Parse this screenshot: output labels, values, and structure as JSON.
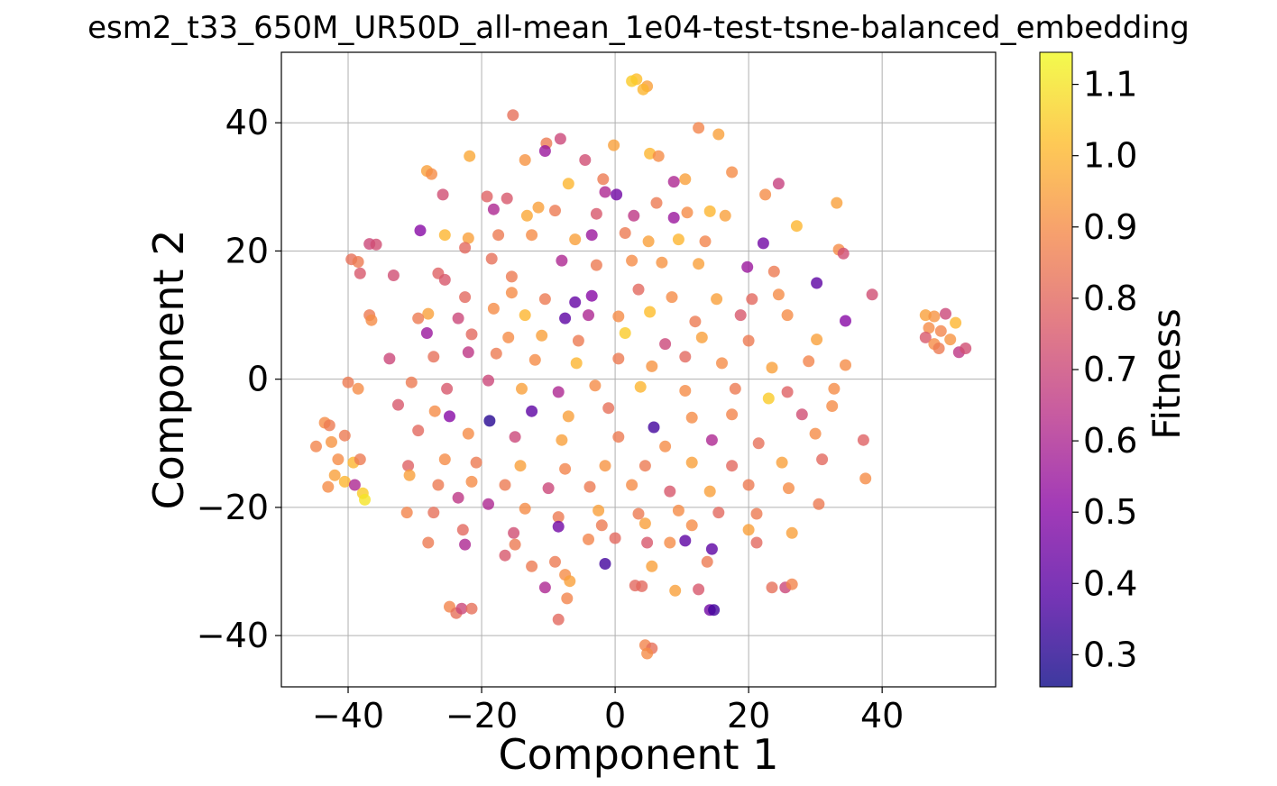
{
  "chart_data": {
    "type": "scatter",
    "title": "esm2_t33_650M_UR50D_all-mean_1e04-test-tsne-balanced_embedding",
    "xlabel": "Component 1",
    "ylabel": "Component 2",
    "xlim": [
      -50,
      57
    ],
    "ylim": [
      -48,
      51
    ],
    "xticks": [
      -40,
      -20,
      0,
      20,
      40
    ],
    "yticks": [
      -40,
      -20,
      0,
      20,
      40
    ],
    "xtick_labels": [
      "−40",
      "−20",
      "0",
      "20",
      "40"
    ],
    "ytick_labels": [
      "−40",
      "−20",
      "0",
      "20",
      "40"
    ],
    "grid": true,
    "colormap": "plasma",
    "colorbar": {
      "label": "Fitness",
      "min": 0.255,
      "max": 1.145,
      "ticks": [
        0.3,
        0.4,
        0.5,
        0.6,
        0.7,
        0.8,
        0.9,
        1.0,
        1.1
      ],
      "tick_labels": [
        "0.3",
        "0.4",
        "0.5",
        "0.6",
        "0.7",
        "0.8",
        "0.9",
        "1.0",
        "1.1"
      ]
    },
    "point_alpha": 0.8,
    "points": [
      [
        -15.3,
        41.2,
        0.82
      ],
      [
        3.2,
        46.8,
        1.02
      ],
      [
        4.8,
        45.7,
        0.95
      ],
      [
        2.5,
        46.5,
        1.05
      ],
      [
        4.2,
        45.2,
        1.0
      ],
      [
        12.5,
        39.2,
        0.88
      ],
      [
        15.5,
        38.2,
        0.95
      ],
      [
        -8.2,
        37.5,
        0.7
      ],
      [
        -10.3,
        36.8,
        0.85
      ],
      [
        -10.5,
        35.6,
        0.55
      ],
      [
        -0.2,
        36.5,
        0.95
      ],
      [
        5.2,
        35.2,
        1.0
      ],
      [
        6.5,
        34.8,
        0.9
      ],
      [
        -13.5,
        34.2,
        0.92
      ],
      [
        -4.5,
        34.2,
        0.72
      ],
      [
        -21.8,
        34.8,
        0.97
      ],
      [
        -28.2,
        32.5,
        0.95
      ],
      [
        -27.5,
        32.0,
        0.9
      ],
      [
        -1.8,
        31.2,
        0.85
      ],
      [
        10.5,
        31.2,
        0.95
      ],
      [
        17.5,
        32.3,
        0.9
      ],
      [
        24.5,
        30.5,
        0.68
      ],
      [
        -7.0,
        30.5,
        1.0
      ],
      [
        8.8,
        30.8,
        0.6
      ],
      [
        0.2,
        28.8,
        0.45
      ],
      [
        -1.5,
        29.2,
        0.6
      ],
      [
        22.5,
        28.8,
        0.9
      ],
      [
        -25.8,
        28.8,
        0.72
      ],
      [
        -19.2,
        28.5,
        0.78
      ],
      [
        -16.2,
        28.2,
        0.75
      ],
      [
        33.2,
        27.5,
        0.95
      ],
      [
        6.2,
        27.5,
        0.85
      ],
      [
        -11.5,
        26.8,
        0.95
      ],
      [
        -9.0,
        26.3,
        0.85
      ],
      [
        -18.2,
        26.5,
        0.6
      ],
      [
        10.8,
        26.0,
        0.9
      ],
      [
        14.2,
        26.2,
        1.0
      ],
      [
        16.5,
        25.5,
        0.95
      ],
      [
        -2.8,
        25.8,
        0.75
      ],
      [
        2.8,
        25.5,
        0.65
      ],
      [
        8.8,
        25.2,
        0.55
      ],
      [
        -13.2,
        25.5,
        0.97
      ],
      [
        27.2,
        23.9,
        1.0
      ],
      [
        -29.2,
        23.2,
        0.5
      ],
      [
        22.2,
        21.2,
        0.45
      ],
      [
        -25.5,
        22.5,
        1.0
      ],
      [
        -22.0,
        22.0,
        0.95
      ],
      [
        -17.5,
        22.5,
        0.85
      ],
      [
        -12.5,
        22.5,
        0.9
      ],
      [
        -6.0,
        21.8,
        0.95
      ],
      [
        -3.5,
        22.5,
        0.55
      ],
      [
        1.5,
        22.8,
        0.85
      ],
      [
        5.0,
        21.5,
        0.95
      ],
      [
        9.5,
        21.8,
        1.0
      ],
      [
        13.5,
        21.5,
        0.88
      ],
      [
        -36.8,
        21.1,
        0.7
      ],
      [
        -35.8,
        21.0,
        0.72
      ],
      [
        33.5,
        20.2,
        0.9
      ],
      [
        34.2,
        19.6,
        0.72
      ],
      [
        -22.5,
        20.5,
        0.8
      ],
      [
        -39.5,
        18.7,
        0.82
      ],
      [
        -38.5,
        18.3,
        0.85
      ],
      [
        -38.2,
        16.5,
        0.75
      ],
      [
        -33.2,
        16.2,
        0.72
      ],
      [
        -26.5,
        16.5,
        0.78
      ],
      [
        -25.5,
        15.5,
        0.75
      ],
      [
        -18.5,
        18.8,
        0.82
      ],
      [
        -15.5,
        16.0,
        0.85
      ],
      [
        -8.0,
        18.5,
        0.6
      ],
      [
        -2.8,
        17.8,
        0.85
      ],
      [
        2.5,
        18.5,
        0.9
      ],
      [
        7.0,
        18.2,
        0.92
      ],
      [
        12.5,
        18.0,
        0.95
      ],
      [
        19.8,
        17.5,
        0.55
      ],
      [
        23.8,
        16.8,
        0.85
      ],
      [
        30.2,
        15.0,
        0.4
      ],
      [
        38.5,
        13.2,
        0.72
      ],
      [
        -22.5,
        12.8,
        0.8
      ],
      [
        -15.5,
        13.5,
        0.9
      ],
      [
        -10.5,
        12.5,
        0.85
      ],
      [
        -6.0,
        12.0,
        0.42
      ],
      [
        -3.5,
        13.0,
        0.5
      ],
      [
        3.5,
        14.0,
        0.8
      ],
      [
        8.5,
        12.8,
        0.9
      ],
      [
        15.2,
        12.5,
        0.95
      ],
      [
        20.5,
        12.5,
        0.8
      ],
      [
        24.5,
        13.2,
        0.9
      ],
      [
        -36.8,
        10.0,
        0.85
      ],
      [
        -36.5,
        9.2,
        0.9
      ],
      [
        -28.0,
        10.2,
        0.95
      ],
      [
        -23.5,
        9.5,
        0.7
      ],
      [
        -18.2,
        11.0,
        0.9
      ],
      [
        -13.5,
        10.0,
        1.0
      ],
      [
        -7.5,
        9.5,
        0.4
      ],
      [
        -4.0,
        10.0,
        0.6
      ],
      [
        0.5,
        9.8,
        0.9
      ],
      [
        5.2,
        10.5,
        1.02
      ],
      [
        12.0,
        9.0,
        0.85
      ],
      [
        18.8,
        10.0,
        0.75
      ],
      [
        25.8,
        10.0,
        0.9
      ],
      [
        34.5,
        9.1,
        0.5
      ],
      [
        46.5,
        10.0,
        0.95
      ],
      [
        47.8,
        9.8,
        0.92
      ],
      [
        49.5,
        10.2,
        0.7
      ],
      [
        51.0,
        8.8,
        1.0
      ],
      [
        47.0,
        8.0,
        0.9
      ],
      [
        48.8,
        7.5,
        0.88
      ],
      [
        46.5,
        6.5,
        0.75
      ],
      [
        50.2,
        6.2,
        0.92
      ],
      [
        47.8,
        5.5,
        0.9
      ],
      [
        48.5,
        4.8,
        0.85
      ],
      [
        51.5,
        4.2,
        0.65
      ],
      [
        52.5,
        4.8,
        0.72
      ],
      [
        -29.5,
        9.5,
        0.85
      ],
      [
        -28.2,
        7.2,
        0.55
      ],
      [
        -21.5,
        7.0,
        0.8
      ],
      [
        -16.0,
        6.5,
        0.9
      ],
      [
        -11.0,
        6.8,
        0.95
      ],
      [
        -5.5,
        6.0,
        0.85
      ],
      [
        1.5,
        7.2,
        1.05
      ],
      [
        7.5,
        5.5,
        0.7
      ],
      [
        13.0,
        6.5,
        0.95
      ],
      [
        20.0,
        6.0,
        0.85
      ],
      [
        30.2,
        6.2,
        0.95
      ],
      [
        -33.8,
        3.2,
        0.7
      ],
      [
        -27.2,
        3.5,
        0.82
      ],
      [
        -22.0,
        4.2,
        0.65
      ],
      [
        -17.8,
        4.0,
        0.85
      ],
      [
        -12.0,
        3.0,
        0.9
      ],
      [
        -5.8,
        2.5,
        1.0
      ],
      [
        0.5,
        3.2,
        0.85
      ],
      [
        5.5,
        2.0,
        0.92
      ],
      [
        10.5,
        3.5,
        0.8
      ],
      [
        16.0,
        2.5,
        0.9
      ],
      [
        23.5,
        1.8,
        0.95
      ],
      [
        29.0,
        2.8,
        0.88
      ],
      [
        34.5,
        2.2,
        0.9
      ],
      [
        -40.0,
        -0.5,
        0.85
      ],
      [
        -38.5,
        -1.5,
        0.9
      ],
      [
        -30.5,
        -0.5,
        0.85
      ],
      [
        -25.2,
        -1.5,
        0.75
      ],
      [
        -19.0,
        -0.2,
        0.7
      ],
      [
        -14.0,
        -1.5,
        0.95
      ],
      [
        -8.5,
        -2.0,
        0.6
      ],
      [
        -3.0,
        -1.0,
        0.9
      ],
      [
        3.8,
        -1.2,
        1.0
      ],
      [
        10.5,
        -1.8,
        0.9
      ],
      [
        18.0,
        -1.5,
        0.85
      ],
      [
        25.8,
        -2.0,
        0.78
      ],
      [
        32.8,
        -1.5,
        0.9
      ],
      [
        -32.5,
        -4.0,
        0.75
      ],
      [
        -27.0,
        -5.0,
        0.9
      ],
      [
        -24.8,
        -5.8,
        0.5
      ],
      [
        -18.8,
        -6.5,
        0.3
      ],
      [
        -12.5,
        -5.0,
        0.4
      ],
      [
        -7.0,
        -5.8,
        0.95
      ],
      [
        -1.0,
        -4.5,
        0.82
      ],
      [
        5.8,
        -7.5,
        0.35
      ],
      [
        11.5,
        -6.0,
        0.9
      ],
      [
        17.5,
        -5.5,
        0.88
      ],
      [
        23.0,
        -3.0,
        1.05
      ],
      [
        28.0,
        -5.5,
        0.72
      ],
      [
        32.5,
        -4.2,
        0.9
      ],
      [
        -43.5,
        -6.8,
        0.9
      ],
      [
        -42.8,
        -7.2,
        0.85
      ],
      [
        -44.8,
        -10.5,
        0.88
      ],
      [
        -42.5,
        -9.8,
        0.92
      ],
      [
        -40.5,
        -8.8,
        0.85
      ],
      [
        -29.5,
        -8.0,
        0.8
      ],
      [
        -22.0,
        -8.5,
        0.9
      ],
      [
        -15.0,
        -9.0,
        0.7
      ],
      [
        -8.0,
        -9.5,
        0.95
      ],
      [
        0.5,
        -9.0,
        0.85
      ],
      [
        7.5,
        -10.5,
        0.9
      ],
      [
        14.5,
        -9.5,
        0.6
      ],
      [
        21.5,
        -10.0,
        0.82
      ],
      [
        30.0,
        -8.5,
        0.9
      ],
      [
        37.2,
        -9.5,
        0.78
      ],
      [
        -41.5,
        -12.5,
        0.9
      ],
      [
        -39.2,
        -13.0,
        1.0
      ],
      [
        -38.2,
        -12.5,
        0.85
      ],
      [
        -31.0,
        -13.5,
        0.78
      ],
      [
        -25.5,
        -12.5,
        0.9
      ],
      [
        -20.8,
        -13.0,
        0.85
      ],
      [
        -14.2,
        -13.5,
        0.95
      ],
      [
        -7.5,
        -14.0,
        0.88
      ],
      [
        -1.5,
        -13.5,
        0.92
      ],
      [
        4.5,
        -13.5,
        0.85
      ],
      [
        11.5,
        -13.0,
        0.95
      ],
      [
        17.5,
        -13.5,
        0.8
      ],
      [
        25.0,
        -13.0,
        0.95
      ],
      [
        31.0,
        -12.5,
        0.8
      ],
      [
        -42.0,
        -15.0,
        0.95
      ],
      [
        -40.5,
        -16.0,
        1.0
      ],
      [
        -43.0,
        -16.8,
        0.9
      ],
      [
        -39.0,
        -16.5,
        0.6
      ],
      [
        -37.8,
        -17.8,
        1.05
      ],
      [
        -37.5,
        -18.8,
        1.1
      ],
      [
        -30.8,
        -15.0,
        0.95
      ],
      [
        -26.5,
        -16.5,
        0.85
      ],
      [
        -21.5,
        -16.0,
        0.9
      ],
      [
        -16.5,
        -16.5,
        0.85
      ],
      [
        -10.0,
        -17.0,
        0.7
      ],
      [
        -3.8,
        -16.8,
        0.85
      ],
      [
        2.5,
        -16.5,
        0.9
      ],
      [
        8.2,
        -17.5,
        0.75
      ],
      [
        14.2,
        -17.5,
        0.95
      ],
      [
        20.0,
        -16.5,
        0.85
      ],
      [
        26.0,
        -17.0,
        0.9
      ],
      [
        37.5,
        -15.5,
        0.9
      ],
      [
        -31.2,
        -20.8,
        0.88
      ],
      [
        -27.2,
        -20.8,
        0.82
      ],
      [
        -23.5,
        -18.5,
        0.65
      ],
      [
        -19.0,
        -19.5,
        0.6
      ],
      [
        -13.5,
        -20.2,
        0.9
      ],
      [
        -8.5,
        -21.5,
        0.85
      ],
      [
        -2.5,
        -20.5,
        0.95
      ],
      [
        3.5,
        -21.0,
        0.85
      ],
      [
        9.5,
        -20.5,
        0.9
      ],
      [
        15.5,
        -20.8,
        0.8
      ],
      [
        21.2,
        -21.0,
        0.85
      ],
      [
        30.5,
        -19.5,
        0.85
      ],
      [
        -22.8,
        -23.5,
        0.8
      ],
      [
        -15.2,
        -24.0,
        0.72
      ],
      [
        -8.5,
        -23.0,
        0.45
      ],
      [
        -2.0,
        -22.8,
        0.85
      ],
      [
        4.5,
        -22.5,
        0.95
      ],
      [
        11.5,
        -22.8,
        0.9
      ],
      [
        20.0,
        -23.5,
        0.95
      ],
      [
        26.5,
        -24.0,
        0.95
      ],
      [
        -28.0,
        -25.5,
        0.85
      ],
      [
        -22.5,
        -25.8,
        0.6
      ],
      [
        -15.0,
        -25.8,
        0.85
      ],
      [
        -4.0,
        -25.0,
        0.88
      ],
      [
        0.0,
        -24.8,
        0.8
      ],
      [
        4.8,
        -25.5,
        0.75
      ],
      [
        8.2,
        -25.5,
        0.9
      ],
      [
        10.5,
        -25.2,
        0.4
      ],
      [
        14.5,
        -26.5,
        0.4
      ],
      [
        21.2,
        -25.5,
        0.8
      ],
      [
        -16.5,
        -27.5,
        0.75
      ],
      [
        -9.0,
        -28.5,
        0.85
      ],
      [
        -1.5,
        -28.8,
        0.35
      ],
      [
        5.5,
        -29.2,
        0.95
      ],
      [
        13.8,
        -28.5,
        0.85
      ],
      [
        -12.5,
        -29.2,
        0.85
      ],
      [
        -7.5,
        -30.5,
        0.9
      ],
      [
        -6.8,
        -31.5,
        0.95
      ],
      [
        -10.5,
        -32.5,
        0.6
      ],
      [
        3.0,
        -32.2,
        0.8
      ],
      [
        4.0,
        -32.3,
        0.8
      ],
      [
        12.5,
        -32.8,
        0.75
      ],
      [
        23.5,
        -32.5,
        0.82
      ],
      [
        25.5,
        -32.5,
        0.7
      ],
      [
        26.5,
        -32.0,
        0.88
      ],
      [
        -24.8,
        -35.5,
        0.88
      ],
      [
        -23.8,
        -36.5,
        0.82
      ],
      [
        -23.0,
        -35.8,
        0.7
      ],
      [
        -21.5,
        -35.8,
        0.82
      ],
      [
        -7.2,
        -34.2,
        0.88
      ],
      [
        9.0,
        -33.0,
        0.95
      ],
      [
        14.2,
        -36.0,
        0.45
      ],
      [
        14.8,
        -36.0,
        0.35
      ],
      [
        -8.5,
        -37.5,
        0.8
      ],
      [
        4.5,
        -41.5,
        0.88
      ],
      [
        5.5,
        -42.0,
        0.82
      ],
      [
        4.8,
        -42.8,
        0.9
      ]
    ]
  }
}
